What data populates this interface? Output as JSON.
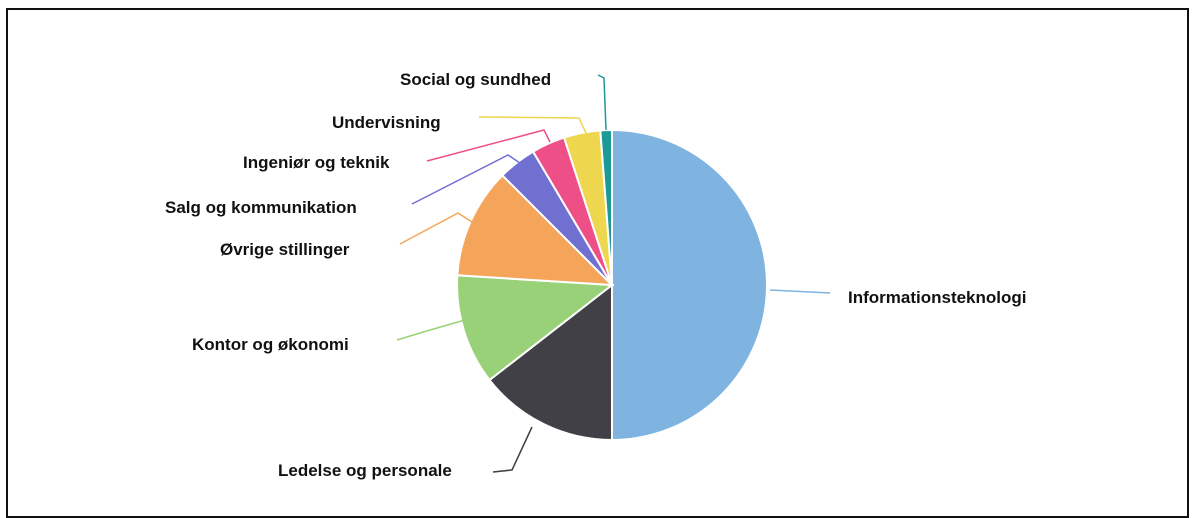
{
  "chart_data": {
    "type": "pie",
    "title": "",
    "start": "12 o'clock, clockwise",
    "legend": "none (labels with leader lines)",
    "slices": [
      {
        "label": "Informationsteknologi",
        "value": 50.0,
        "color": "#7fb3e0"
      },
      {
        "label": "Ledelse og personale",
        "value": 14.5,
        "color": "#404046"
      },
      {
        "label": "Kontor og økonomi",
        "value": 11.5,
        "color": "#98d177"
      },
      {
        "label": "Øvrige stillinger",
        "value": 11.5,
        "color": "#f5a55a"
      },
      {
        "label": "Salg og kommunikation",
        "value": 4.0,
        "color": "#6f70cf"
      },
      {
        "label": "Ingeniør og teknik",
        "value": 3.5,
        "color": "#ee4f87"
      },
      {
        "label": "Undervisning",
        "value": 3.8,
        "color": "#eed64f"
      },
      {
        "label": "Social og sundhed",
        "value": 1.2,
        "color": "#1c9a98"
      }
    ]
  }
}
